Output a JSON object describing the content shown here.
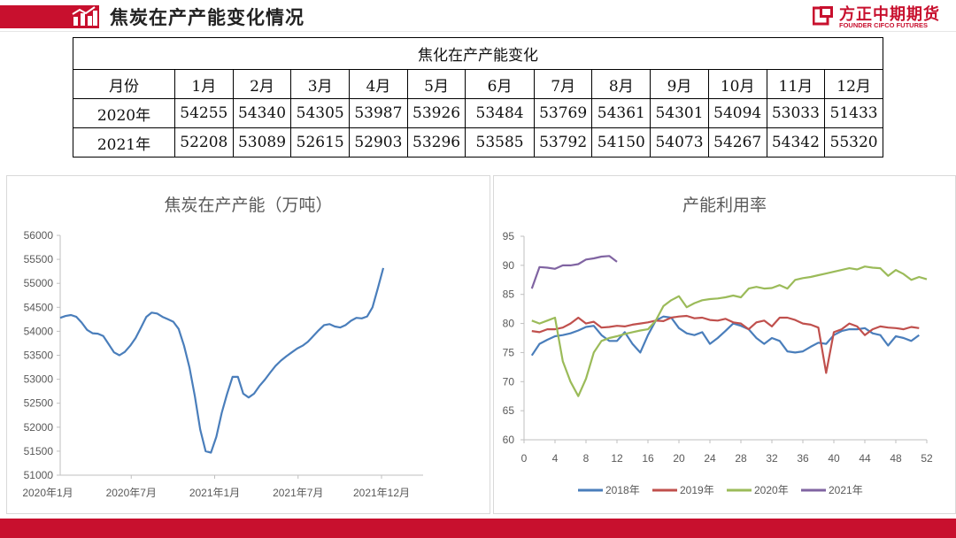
{
  "header": {
    "title": "焦炭在产产能变化情况",
    "logo_cn": "方正中期期货",
    "logo_en": "FOUNDER CIFCO FUTURES",
    "brand_color": "#c8102e"
  },
  "table": {
    "title": "焦化在产产能变化",
    "columns": [
      "月份",
      "1月",
      "2月",
      "3月",
      "4月",
      "5月",
      "6月",
      "7月",
      "8月",
      "9月",
      "10月",
      "11月",
      "12月"
    ],
    "rows": [
      {
        "label": "2020年",
        "values": [
          "54255",
          "54340",
          "54305",
          "53987",
          "53926",
          "53484",
          "53769",
          "54361",
          "54301",
          "54094",
          "53033",
          "51433"
        ]
      },
      {
        "label": "2021年",
        "values": [
          "52208",
          "53089",
          "52615",
          "52903",
          "53296",
          "53585",
          "53792",
          "54150",
          "54073",
          "54267",
          "54342",
          "55320"
        ]
      }
    ]
  },
  "chart_data": [
    {
      "type": "line",
      "title": "焦炭在产产能（万吨）",
      "x_tick_labels": [
        "2020年1月",
        "2020年7月",
        "2021年1月",
        "2021年7月",
        "2021年12月"
      ],
      "ylim": [
        51000,
        56000
      ],
      "y_ticks": [
        51000,
        51500,
        52000,
        52500,
        53000,
        53500,
        54000,
        54500,
        55000,
        55500,
        56000
      ],
      "grid": false,
      "color": "#4a7ebb",
      "series": [
        {
          "values": [
            54280,
            54320,
            54340,
            54300,
            54180,
            54030,
            53960,
            53950,
            53900,
            53730,
            53560,
            53500,
            53570,
            53700,
            53860,
            54080,
            54300,
            54390,
            54370,
            54300,
            54250,
            54200,
            54050,
            53700,
            53250,
            52650,
            51950,
            51500,
            51470,
            51800,
            52300,
            52700,
            53050,
            53050,
            52700,
            52620,
            52700,
            52860,
            52990,
            53140,
            53280,
            53390,
            53480,
            53560,
            53640,
            53700,
            53780,
            53900,
            54020,
            54130,
            54150,
            54100,
            54080,
            54130,
            54220,
            54280,
            54270,
            54310,
            54500,
            54900,
            55320
          ]
        }
      ]
    },
    {
      "type": "line",
      "title": "产能利用率",
      "x_ticks": [
        0,
        4,
        8,
        12,
        16,
        20,
        24,
        28,
        32,
        36,
        40,
        44,
        48,
        52
      ],
      "xlim": [
        0,
        52
      ],
      "ylim": [
        60,
        95
      ],
      "y_ticks": [
        60,
        65,
        70,
        75,
        80,
        85,
        90,
        95
      ],
      "legend_position": "bottom",
      "grid": false,
      "series": [
        {
          "name": "2018年",
          "color": "#4a7ebb",
          "start_week": 1,
          "values": [
            74.5,
            76.5,
            77.2,
            77.8,
            78.0,
            78.3,
            78.8,
            79.4,
            79.6,
            78.0,
            77.0,
            77.0,
            78.5,
            76.5,
            75.0,
            78.0,
            80.5,
            81.2,
            81.0,
            79.2,
            78.3,
            78.0,
            78.5,
            76.5,
            77.5,
            78.7,
            80.0,
            79.6,
            79.0,
            77.5,
            76.5,
            77.5,
            77.0,
            75.2,
            75.0,
            75.2,
            76.0,
            76.7,
            76.5,
            78.0,
            78.7,
            79.0,
            79.0,
            79.2,
            78.3,
            78.0,
            76.2,
            77.8,
            77.5,
            77.0,
            78.0
          ]
        },
        {
          "name": "2019年",
          "color": "#c0504d",
          "start_week": 1,
          "values": [
            78.7,
            78.5,
            79.0,
            79.0,
            79.3,
            80.0,
            81.0,
            80.0,
            80.3,
            79.3,
            79.4,
            79.6,
            79.5,
            79.8,
            80.0,
            80.2,
            80.5,
            80.4,
            81.0,
            81.2,
            81.3,
            80.9,
            81.0,
            80.6,
            80.5,
            80.8,
            80.2,
            80.0,
            79.0,
            80.2,
            80.5,
            79.5,
            81.0,
            81.0,
            80.6,
            80.0,
            79.8,
            79.3,
            71.5,
            78.5,
            79.0,
            80.0,
            79.5,
            78.0,
            79.0,
            79.5,
            79.3,
            79.2,
            79.0,
            79.4,
            79.2
          ]
        },
        {
          "name": "2020年",
          "color": "#9bbb59",
          "start_week": 1,
          "values": [
            80.5,
            80.0,
            80.5,
            81.0,
            73.5,
            70.0,
            67.5,
            70.5,
            75.0,
            77.0,
            77.5,
            77.8,
            78.2,
            78.5,
            78.8,
            79.0,
            80.5,
            83.0,
            84.0,
            84.7,
            82.8,
            83.5,
            84.0,
            84.2,
            84.3,
            84.5,
            84.8,
            84.5,
            86.0,
            86.3,
            86.0,
            86.1,
            86.6,
            86.0,
            87.5,
            87.8,
            88.0,
            88.3,
            88.6,
            88.9,
            89.2,
            89.5,
            89.3,
            89.8,
            89.6,
            89.5,
            88.2,
            89.2,
            88.5,
            87.5,
            88.0,
            87.6
          ]
        },
        {
          "name": "2021年",
          "color": "#8064a2",
          "start_week": 1,
          "values": [
            86.0,
            89.7,
            89.6,
            89.4,
            90.0,
            90.0,
            90.2,
            91.0,
            91.2,
            91.5,
            91.6,
            90.6
          ]
        }
      ]
    }
  ]
}
